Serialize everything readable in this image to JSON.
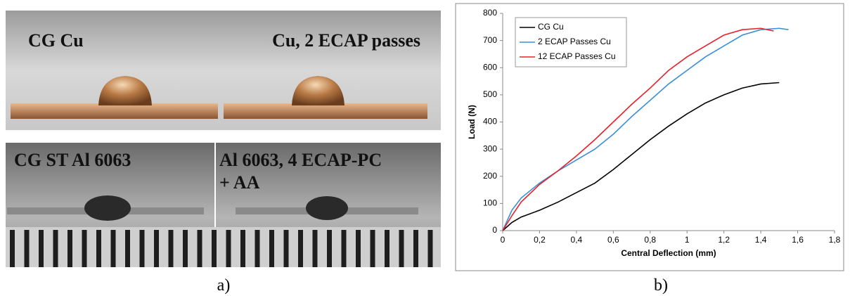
{
  "photo_labels": {
    "top_left": "CG Cu",
    "top_right": "Cu, 2 ECAP passes",
    "bottom_left": "CG ST Al 6063",
    "bottom_right": [
      "Al 6063, 4 ECAP-PC",
      "+ AA"
    ]
  },
  "captions": [
    "a)",
    "b)"
  ],
  "chart_data": {
    "type": "line",
    "x_label": "Central Deflection (mm)",
    "y_label": "Load (N)",
    "xlim": [
      0,
      1.8
    ],
    "ylim": [
      0,
      800
    ],
    "xticks": [
      0,
      {
        "value": 0.2,
        "label": "0,2"
      },
      {
        "value": 0.4,
        "label": "0,4"
      },
      {
        "value": 0.6,
        "label": "0,6"
      },
      {
        "value": 0.8,
        "label": "0,8"
      },
      1,
      {
        "value": 1.2,
        "label": "1,2"
      },
      {
        "value": 1.4,
        "label": "1,4"
      },
      {
        "value": 1.6,
        "label": "1,6"
      },
      {
        "value": 1.8,
        "label": "1,8"
      }
    ],
    "yticks": [
      0,
      100,
      200,
      300,
      400,
      500,
      600,
      700,
      800
    ],
    "legend": "top-left",
    "series": [
      {
        "name": "CG Cu",
        "color": "#000000",
        "x": [
          0,
          0.05,
          0.1,
          0.2,
          0.3,
          0.4,
          0.5,
          0.6,
          0.7,
          0.8,
          0.9,
          1.0,
          1.1,
          1.2,
          1.3,
          1.4,
          1.5
        ],
        "values": [
          0,
          30,
          50,
          75,
          105,
          140,
          175,
          225,
          280,
          335,
          385,
          430,
          470,
          500,
          525,
          540,
          545
        ]
      },
      {
        "name": "2 ECAP Passes Cu",
        "color": "#3a8fd6",
        "x": [
          0,
          0.05,
          0.1,
          0.2,
          0.3,
          0.4,
          0.5,
          0.6,
          0.7,
          0.8,
          0.9,
          1.0,
          1.1,
          1.2,
          1.3,
          1.4,
          1.5,
          1.55
        ],
        "values": [
          0,
          75,
          120,
          175,
          220,
          260,
          300,
          355,
          420,
          480,
          540,
          590,
          640,
          680,
          720,
          740,
          745,
          740
        ]
      },
      {
        "name": "12 ECAP Passes Cu",
        "color": "#e8202a",
        "x": [
          0,
          0.05,
          0.1,
          0.2,
          0.3,
          0.4,
          0.5,
          0.6,
          0.7,
          0.8,
          0.9,
          1.0,
          1.1,
          1.2,
          1.3,
          1.4,
          1.47
        ],
        "values": [
          0,
          55,
          105,
          170,
          220,
          275,
          335,
          400,
          465,
          525,
          590,
          640,
          680,
          720,
          740,
          745,
          735
        ]
      }
    ]
  }
}
